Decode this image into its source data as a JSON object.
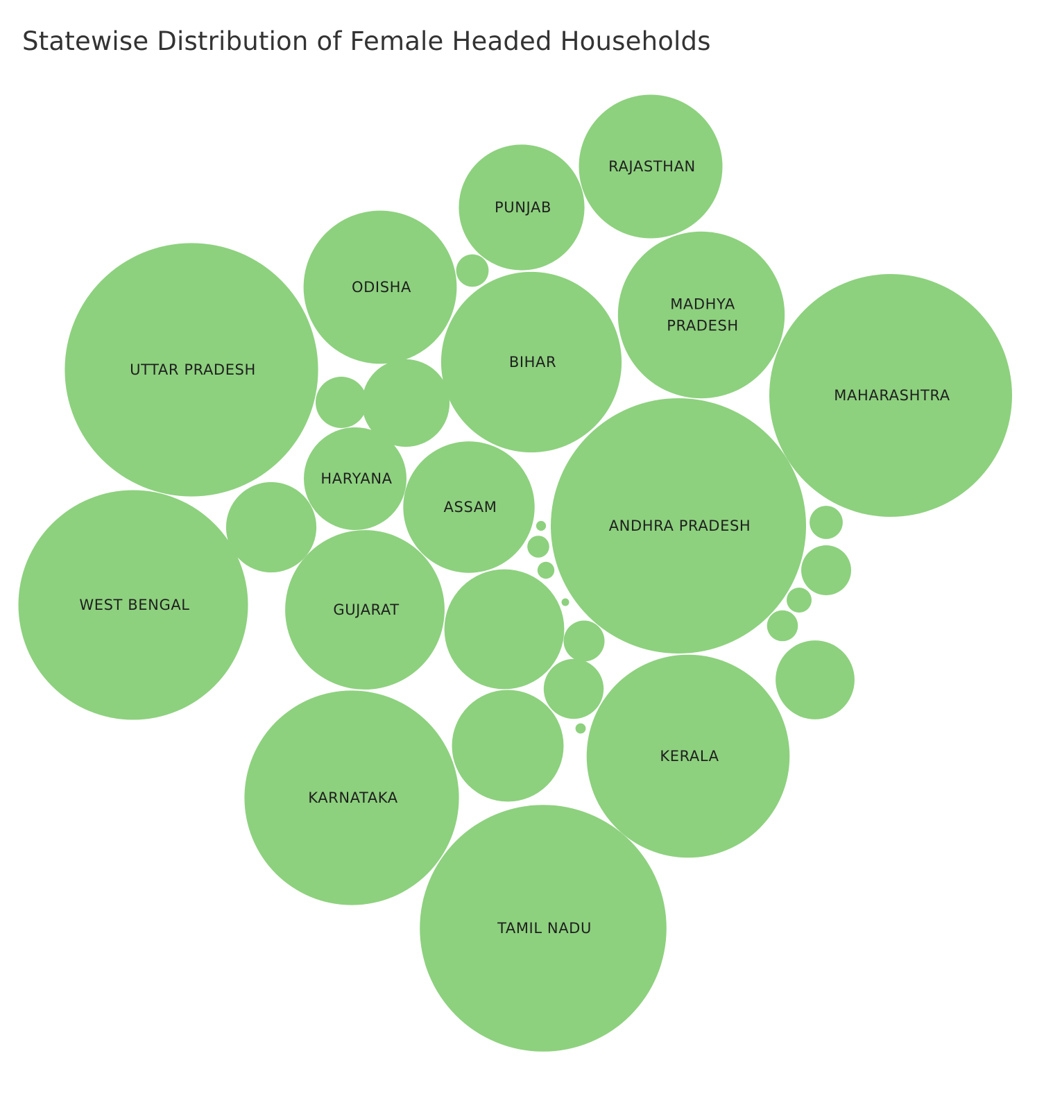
{
  "chart_data": {
    "type": "bubble",
    "title": "Statewise Distribution of Female Headed Households",
    "color": "#8dd17e",
    "label_color": "#1f1f1f",
    "bubbles": [
      {
        "label": "TAMIL NADU",
        "size": 127000
      },
      {
        "label": "ANDHRA PRADESH",
        "size": 136000
      },
      {
        "label": "UTTAR PRADESH",
        "size": 134000
      },
      {
        "label": "MAHARASHTRA",
        "size": 123000
      },
      {
        "label": "WEST BENGAL",
        "size": 110000
      },
      {
        "label": "KARNATAKA",
        "size": 96000
      },
      {
        "label": "KERALA",
        "size": 86000
      },
      {
        "label": "BIHAR",
        "size": 68000
      },
      {
        "label": "MADHYA PRADESH",
        "size": 58000
      },
      {
        "label": "GUJARAT",
        "size": 53000
      },
      {
        "label": "ODISHA",
        "size": 49000
      },
      {
        "label": "RAJASTHAN",
        "size": 43000
      },
      {
        "label": "ASSAM",
        "size": 36000
      },
      {
        "label": "PUNJAB",
        "size": 33000
      },
      {
        "label": "HARYANA",
        "size": 22000
      },
      {
        "label": "",
        "size": 30000
      },
      {
        "label": "",
        "size": 26000
      },
      {
        "label": "",
        "size": 17000
      },
      {
        "label": "",
        "size": 16000
      },
      {
        "label": "",
        "size": 13000
      },
      {
        "label": "",
        "size": 7500
      },
      {
        "label": "",
        "size": 5500
      },
      {
        "label": "",
        "size": 5200
      },
      {
        "label": "",
        "size": 3500
      },
      {
        "label": "",
        "size": 2300
      },
      {
        "label": "",
        "size": 2200
      },
      {
        "label": "",
        "size": 2000
      },
      {
        "label": "",
        "size": 1300
      },
      {
        "label": "",
        "size": 1000
      },
      {
        "label": "",
        "size": 600
      },
      {
        "label": "",
        "size": 220
      },
      {
        "label": "",
        "size": 200
      },
      {
        "label": "",
        "size": 120
      }
    ]
  }
}
